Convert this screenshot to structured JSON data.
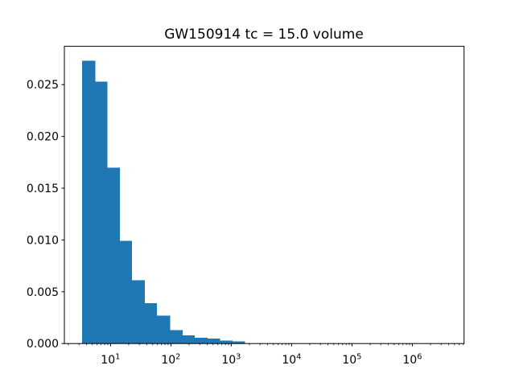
{
  "chart_data": {
    "type": "bar",
    "subtype": "histogram",
    "title": "GW150914 tc = 15.0 volume",
    "xlabel": "",
    "ylabel": "",
    "xscale": "log",
    "yscale": "linear",
    "grid": false,
    "legend": null,
    "bar_color": "#1f77b4",
    "axis_color": "#000000",
    "background_color": "#ffffff",
    "xlim": [
      1.72,
      7200000
    ],
    "ylim": [
      0,
      0.0287
    ],
    "bin_edges": [
      3.4,
      5.6,
      8.9,
      14.2,
      22.8,
      37.2,
      59,
      97,
      157,
      250,
      405,
      650,
      1050,
      1700
    ],
    "bin_heights": [
      0.0273,
      0.0253,
      0.017,
      0.0099,
      0.0061,
      0.0039,
      0.0027,
      0.0013,
      0.0008,
      0.00055,
      0.0005,
      0.0003,
      0.00022
    ],
    "xticks": [
      {
        "value": 10,
        "base": "10",
        "exponent": "1"
      },
      {
        "value": 100,
        "base": "10",
        "exponent": "2"
      },
      {
        "value": 1000,
        "base": "10",
        "exponent": "3"
      },
      {
        "value": 10000,
        "base": "10",
        "exponent": "4"
      },
      {
        "value": 100000,
        "base": "10",
        "exponent": "5"
      },
      {
        "value": 1000000,
        "base": "10",
        "exponent": "6"
      }
    ],
    "yticks": [
      {
        "value": 0.0,
        "label": "0.000"
      },
      {
        "value": 0.005,
        "label": "0.005"
      },
      {
        "value": 0.01,
        "label": "0.010"
      },
      {
        "value": 0.015,
        "label": "0.015"
      },
      {
        "value": 0.02,
        "label": "0.020"
      },
      {
        "value": 0.025,
        "label": "0.025"
      }
    ]
  }
}
